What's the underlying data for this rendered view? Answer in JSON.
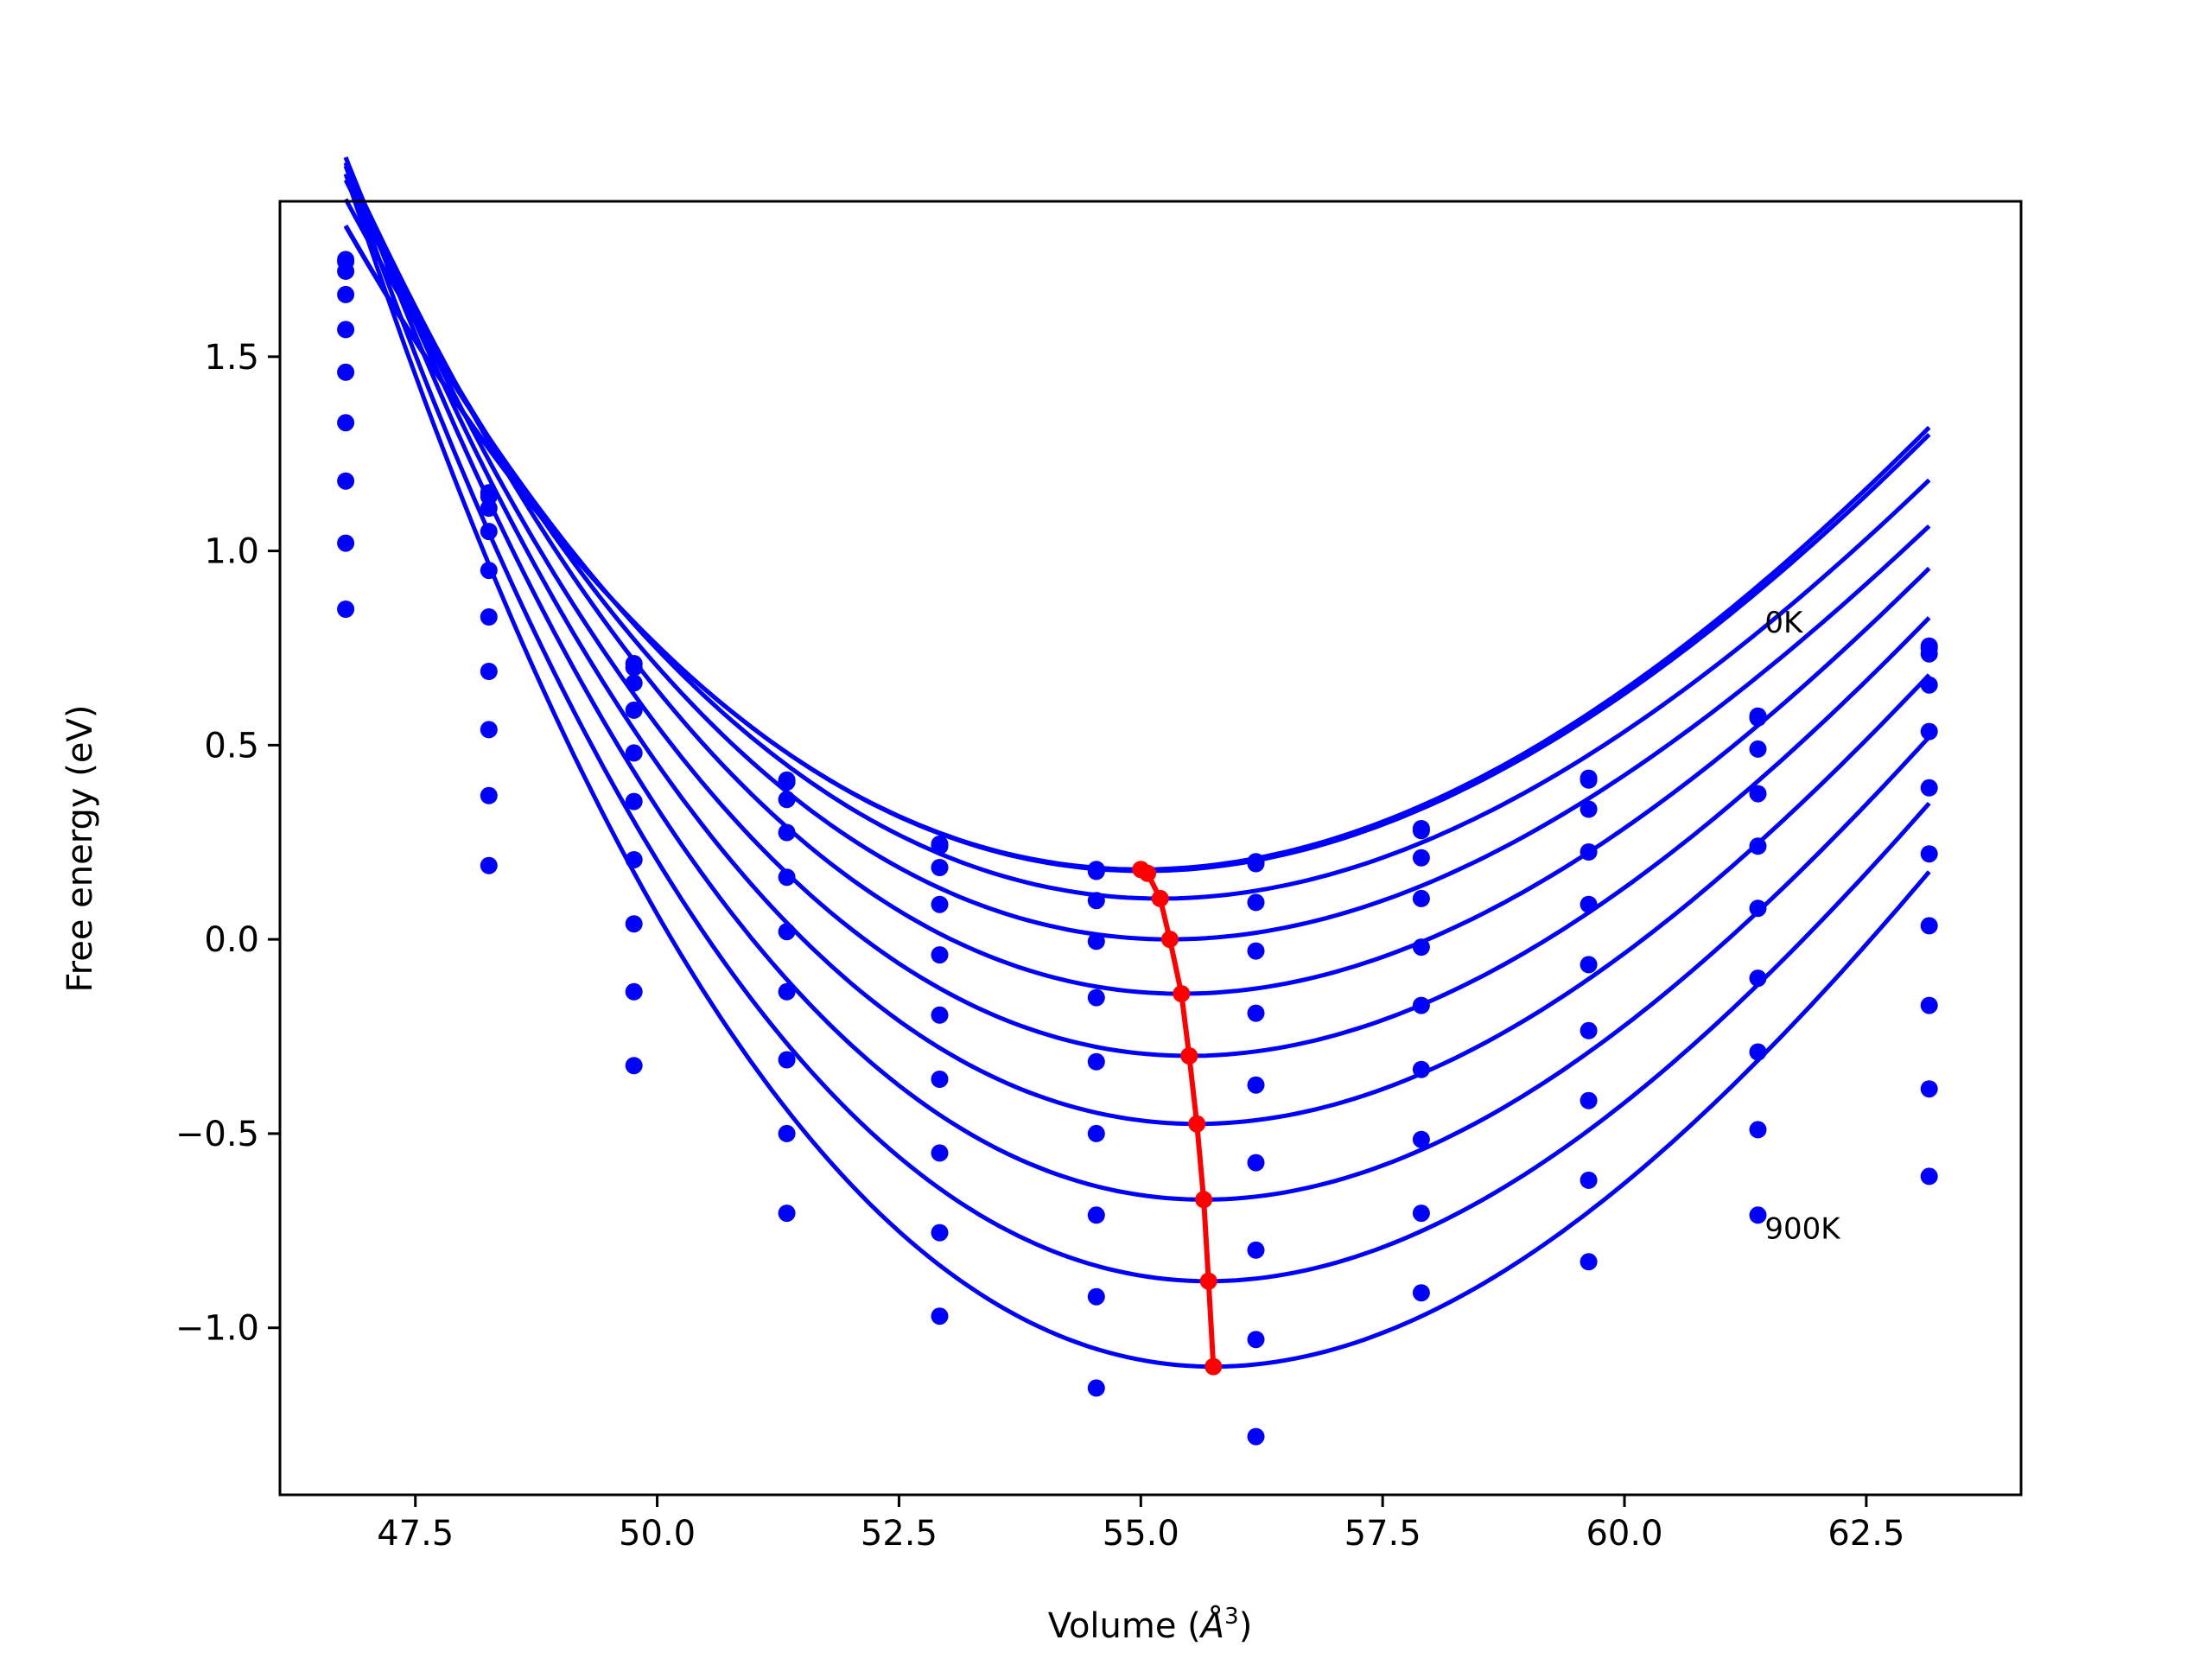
{
  "chart_data": {
    "type": "line",
    "title": "",
    "xlabel": "Volume (",
    "xlabel_unit_base": "Å",
    "xlabel_unit_exp": "3",
    "xlabel_close": ")",
    "ylabel": "Free energy (eV)",
    "xlim": [
      46.1,
      64.1
    ],
    "ylim": [
      -1.43,
      1.9
    ],
    "xticks": [
      47.5,
      50.0,
      52.5,
      55.0,
      57.5,
      60.0,
      62.5
    ],
    "xtick_labels": [
      "47.5",
      "50.0",
      "52.5",
      "55.0",
      "57.5",
      "60.0",
      "62.5"
    ],
    "yticks": [
      -1.0,
      -0.5,
      0.0,
      0.5,
      1.0,
      1.5
    ],
    "ytick_labels": [
      "−1.0",
      "−0.5",
      "0.0",
      "0.5",
      "1.0",
      "1.5"
    ],
    "grid": false,
    "legend": "none",
    "colors": {
      "fit_curves": "#0000ff",
      "data_points": "#0000ff",
      "minimum_path": "#ff0000"
    },
    "annotations": [
      {
        "text": "0K",
        "x": 61.45,
        "y": 0.79
      },
      {
        "text": "900K",
        "x": 61.45,
        "y": -0.77
      }
    ],
    "x": [
      46.78,
      48.26,
      49.76,
      51.34,
      52.92,
      54.54,
      56.19,
      57.9,
      59.63,
      61.38,
      63.15
    ],
    "series": [
      {
        "values": [
          1.75,
          1.15,
          0.71,
          0.41,
          0.245,
          0.18,
          0.2,
          0.285,
          0.415,
          0.575,
          0.755
        ],
        "fit": {
          "vmin": 55.0,
          "emin": 0.18,
          "a": 0.0208,
          "b": 0.00045
        }
      },
      {
        "values": [
          1.745,
          1.14,
          0.7,
          0.405,
          0.24,
          0.175,
          0.195,
          0.28,
          0.41,
          0.57,
          0.75
        ],
        "fit": {
          "vmin": 55.03,
          "emin": 0.176,
          "a": 0.0207,
          "b": 0.00045
        }
      },
      {
        "values": [
          1.72,
          1.11,
          0.66,
          0.36,
          0.185,
          0.1,
          0.095,
          0.21,
          0.335,
          0.49,
          0.735
        ],
        "fit": {
          "vmin": 55.2,
          "emin": 0.105,
          "a": 0.0211,
          "b": 0.00051
        }
      },
      {
        "values": [
          1.66,
          1.05,
          0.59,
          0.275,
          0.09,
          -0.005,
          -0.03,
          0.105,
          0.225,
          0.375,
          0.655
        ],
        "fit": {
          "vmin": 55.3,
          "emin": 0.0,
          "a": 0.0219,
          "b": 0.00059
        }
      },
      {
        "values": [
          1.57,
          0.95,
          0.48,
          0.16,
          -0.04,
          -0.15,
          -0.19,
          -0.02,
          0.09,
          0.24,
          0.535
        ],
        "fit": {
          "vmin": 55.42,
          "emin": -0.14,
          "a": 0.0232,
          "b": 0.00063
        }
      },
      {
        "values": [
          1.46,
          0.83,
          0.355,
          0.02,
          -0.195,
          -0.315,
          -0.375,
          -0.17,
          -0.065,
          0.08,
          0.39
        ],
        "fit": {
          "vmin": 55.5,
          "emin": -0.3,
          "a": 0.0244,
          "b": 0.00067
        }
      },
      {
        "values": [
          1.33,
          0.69,
          0.205,
          -0.135,
          -0.36,
          -0.5,
          -0.575,
          -0.335,
          -0.235,
          -0.1,
          0.22
        ],
        "fit": {
          "vmin": 55.58,
          "emin": -0.475,
          "a": 0.0257,
          "b": 0.00073
        }
      },
      {
        "values": [
          1.18,
          0.54,
          0.04,
          -0.31,
          -0.55,
          -0.71,
          -0.8,
          -0.515,
          -0.415,
          -0.29,
          0.035
        ],
        "fit": {
          "vmin": 55.65,
          "emin": -0.67,
          "a": 0.0271,
          "b": 0.00079
        }
      },
      {
        "values": [
          1.02,
          0.37,
          -0.135,
          -0.5,
          -0.755,
          -0.92,
          -1.03,
          -0.705,
          -0.62,
          -0.49,
          -0.17
        ],
        "fit": {
          "vmin": 55.7,
          "emin": -0.88,
          "a": 0.0285,
          "b": 0.00085
        }
      },
      {
        "values": [
          0.85,
          0.19,
          -0.325,
          -0.705,
          -0.97,
          -1.155,
          -1.28,
          -0.91,
          -0.83,
          -0.71,
          -0.385
        ],
        "fit": {
          "vmin": 55.75,
          "emin": -1.1,
          "a": 0.03,
          "b": 0.00091
        }
      }
    ],
    "extra_points": {
      "x": [
        63.15
      ],
      "y": [
        -0.61
      ]
    },
    "minimum_path": {
      "x": [
        55.0,
        55.07,
        55.2,
        55.3,
        55.42,
        55.5,
        55.58,
        55.65,
        55.7,
        55.75
      ],
      "y": [
        0.18,
        0.17,
        0.105,
        0.0,
        -0.14,
        -0.3,
        -0.475,
        -0.67,
        -0.88,
        -1.1
      ]
    }
  }
}
